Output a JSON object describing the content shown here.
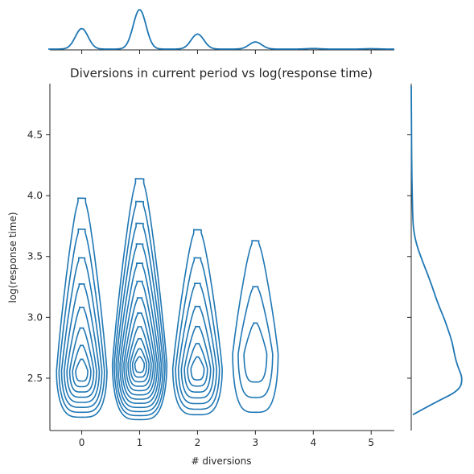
{
  "chart_data": {
    "type": "kde-jointplot",
    "title": "Diversions in current period vs log(response time)",
    "xlabel": "# diversions",
    "ylabel": "log(response time)",
    "xlim": [
      -0.55,
      5.4
    ],
    "ylim": [
      2.07,
      4.92
    ],
    "x_ticks": [
      "0",
      "1",
      "2",
      "3",
      "4",
      "5"
    ],
    "y_ticks": [
      "2.5",
      "3.0",
      "3.5",
      "4.0",
      "4.5"
    ],
    "color": "#1f77b4",
    "grid": false,
    "legend": "none",
    "groups": [
      {
        "x": 0,
        "y_center": 2.56,
        "y_bottom": 2.18,
        "y_top": 3.98,
        "levels": 8
      },
      {
        "x": 1,
        "y_center": 2.62,
        "y_bottom": 2.16,
        "y_top": 4.14,
        "levels": 12
      },
      {
        "x": 2,
        "y_center": 2.58,
        "y_bottom": 2.2,
        "y_top": 3.72,
        "levels": 7
      },
      {
        "x": 3,
        "y_center": 2.7,
        "y_bottom": 2.22,
        "y_top": 3.63,
        "levels": 3
      }
    ],
    "x_marginal": {
      "x": [
        0,
        1,
        2,
        3,
        4,
        5
      ],
      "density": [
        0.52,
        1.0,
        0.38,
        0.18,
        0.015,
        0.01
      ]
    },
    "y_marginal": {
      "y": [
        2.2,
        2.3,
        2.4,
        2.5,
        2.6,
        2.7,
        2.8,
        2.9,
        3.0,
        3.1,
        3.2,
        3.3,
        3.4,
        3.5,
        3.6,
        3.7,
        3.8,
        4.0,
        4.2,
        4.5,
        4.9
      ],
      "density": [
        0.03,
        0.45,
        0.92,
        0.98,
        0.88,
        0.82,
        0.78,
        0.7,
        0.62,
        0.52,
        0.44,
        0.36,
        0.27,
        0.18,
        0.1,
        0.05,
        0.03,
        0.02,
        0.01,
        0.005,
        0.0
      ]
    }
  }
}
